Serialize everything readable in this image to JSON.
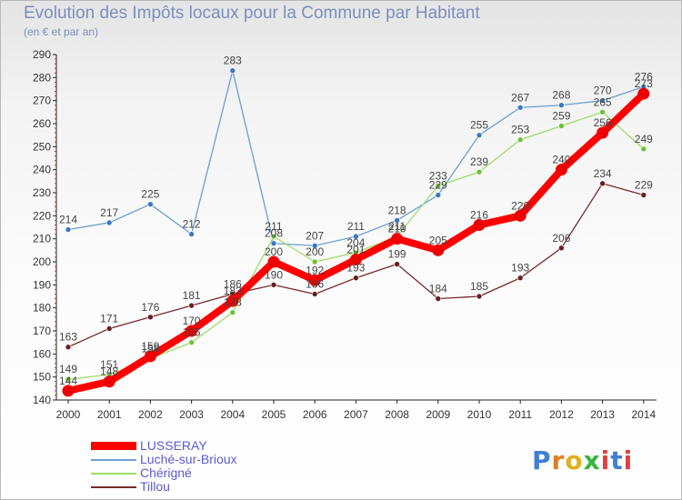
{
  "header": {
    "title": "Evolution des Impôts locaux pour la Commune par Habitant",
    "subtitle": "(en € et par an)"
  },
  "brand": {
    "text": "Proxiti",
    "colors": [
      "#3f7fd2",
      "#e07f20",
      "#e0b020",
      "#3cb43c",
      "#e04040",
      "#3f7fd2",
      "#e04040"
    ]
  },
  "chart_data": {
    "type": "line",
    "title": "Evolution des Impôts locaux pour la Commune par Habitant",
    "subtitle": "(en € et par an)",
    "xlabel": "",
    "ylabel": "",
    "ylim": [
      140,
      290
    ],
    "y_ticks": [
      140,
      150,
      160,
      170,
      180,
      190,
      200,
      210,
      220,
      230,
      240,
      250,
      260,
      270,
      280,
      290
    ],
    "grid": false,
    "legend_position": "bottom-left",
    "x": [
      "2000",
      "2001",
      "2002",
      "2003",
      "2004",
      "2005",
      "2006",
      "2007",
      "2008",
      "2009",
      "2010",
      "2011",
      "2012",
      "2013",
      "2014"
    ],
    "series": [
      {
        "name": "Luché-sur-Brioux",
        "color": "#6a9fd4",
        "marker": "#3b78c2",
        "values": [
          214,
          217,
          225,
          212,
          283,
          208,
          207,
          211,
          218,
          229,
          255,
          267,
          268,
          270,
          276
        ],
        "labels": [
          "214",
          "217",
          "225",
          "212",
          "283",
          "208",
          "207",
          "211",
          "218",
          "229",
          "255",
          "267",
          "268",
          "270",
          "276"
        ]
      },
      {
        "name": "Chérigné",
        "color": "#9fdc6a",
        "marker": "#6cc23a",
        "values": [
          149,
          151,
          158,
          165,
          178,
          211,
          200,
          204,
          211,
          233,
          239,
          253,
          259,
          265,
          249
        ],
        "labels": [
          "149",
          "151",
          "158",
          "165",
          "178",
          "211",
          "200",
          "204",
          "211",
          "233",
          "239",
          "253",
          "259",
          "265",
          "249"
        ]
      },
      {
        "name": "Tillou",
        "color": "#7a2a2a",
        "marker": "#6a1e1e",
        "values": [
          163,
          171,
          176,
          181,
          186,
          190,
          186,
          193,
          199,
          184,
          185,
          193,
          206,
          234,
          229
        ],
        "labels": [
          "163",
          "171",
          "176",
          "181",
          "186",
          "190",
          "186",
          "193",
          "199",
          "184",
          "185",
          "193",
          "206",
          "234",
          "229"
        ]
      },
      {
        "name": "LUSSERAY",
        "color": "#ff0000",
        "marker": "#ee0000",
        "values": [
          144,
          148,
          159,
          170,
          183,
          200,
          192,
          201,
          210,
          205,
          216,
          220,
          240,
          256,
          273
        ],
        "labels": [
          "144",
          "148",
          "159",
          "170",
          "183",
          "200",
          "192",
          "201",
          "210",
          "205",
          "216",
          "220",
          "240",
          "256",
          "273"
        ]
      }
    ],
    "legend": [
      {
        "name": "LUSSERAY",
        "color": "#ff0000"
      },
      {
        "name": "Luché-sur-Brioux",
        "color": "#6a9fd4"
      },
      {
        "name": "Chérigné",
        "color": "#9fdc6a"
      },
      {
        "name": "Tillou",
        "color": "#7a2a2a"
      }
    ]
  }
}
